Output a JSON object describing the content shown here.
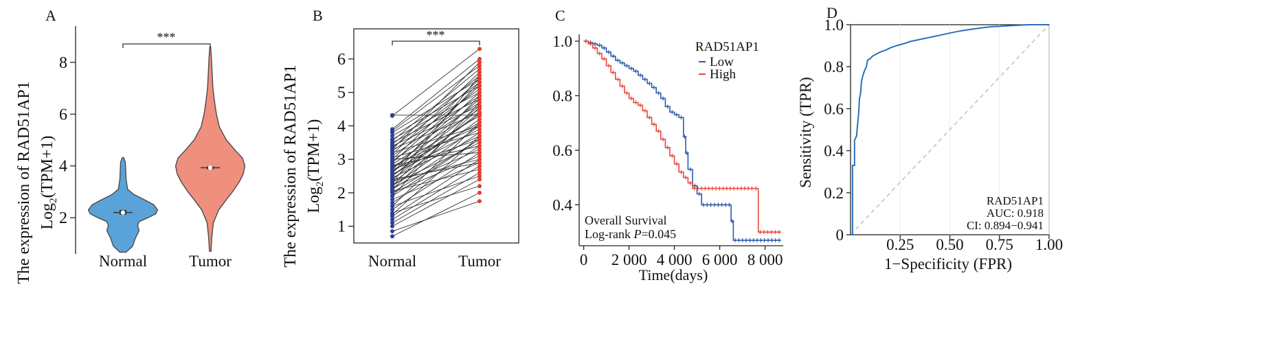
{
  "panels": [
    {
      "letter": "A",
      "chart_data": {
        "type": "violin",
        "categories": [
          "Normal",
          "Tumor"
        ],
        "ylabel_line1": "The expression of RAD51AP1",
        "ylabel_line2": "Log2(TPM+1)",
        "ylim": [
          0.6,
          9.4
        ],
        "yticks": [
          2,
          4,
          6,
          8
        ],
        "yticklabels": [
          "2",
          "4",
          "6",
          "8"
        ],
        "significance": "***",
        "series": [
          {
            "category": "Normal",
            "color": "#5aa3d8",
            "median": 2.2,
            "q1": 2.12,
            "q3": 2.3,
            "min": 0.67,
            "max": 4.32,
            "density": [
              [
                0.67,
                0.08
              ],
              [
                0.9,
                0.25
              ],
              [
                1.2,
                0.32
              ],
              [
                1.5,
                0.42
              ],
              [
                1.7,
                0.38
              ],
              [
                1.85,
                0.42
              ],
              [
                2.0,
                0.65
              ],
              [
                2.15,
                0.85
              ],
              [
                2.3,
                0.9
              ],
              [
                2.5,
                0.8
              ],
              [
                2.7,
                0.55
              ],
              [
                2.9,
                0.28
              ],
              [
                3.1,
                0.12
              ],
              [
                3.5,
                0.08
              ],
              [
                3.9,
                0.07
              ],
              [
                4.15,
                0.06
              ],
              [
                4.32,
                0.02
              ]
            ]
          },
          {
            "category": "Tumor",
            "color": "#ef8f7e",
            "median": 3.93,
            "q1": 3.87,
            "q3": 3.98,
            "min": 0.7,
            "max": 8.6,
            "density": [
              [
                0.7,
                0.02
              ],
              [
                1.2,
                0.04
              ],
              [
                1.8,
                0.08
              ],
              [
                2.3,
                0.22
              ],
              [
                2.7,
                0.42
              ],
              [
                3.0,
                0.58
              ],
              [
                3.4,
                0.76
              ],
              [
                3.7,
                0.86
              ],
              [
                4.0,
                0.9
              ],
              [
                4.3,
                0.84
              ],
              [
                4.6,
                0.65
              ],
              [
                5.0,
                0.42
              ],
              [
                5.5,
                0.24
              ],
              [
                6.0,
                0.16
              ],
              [
                6.5,
                0.11
              ],
              [
                7.0,
                0.07
              ],
              [
                7.6,
                0.05
              ],
              [
                8.2,
                0.03
              ],
              [
                8.6,
                0.01
              ]
            ]
          }
        ]
      }
    },
    {
      "letter": "B",
      "chart_data": {
        "type": "paired",
        "categories": [
          "Normal",
          "Tumor"
        ],
        "ylabel_line1": "The expression of RAD51AP1",
        "ylabel_line2": "Log2(TPM+1)",
        "ylim": [
          0.5,
          6.9
        ],
        "yticks": [
          1,
          2,
          3,
          4,
          5,
          6
        ],
        "yticklabels": [
          "1",
          "2",
          "3",
          "4",
          "5",
          "6"
        ],
        "significance": "***",
        "normal_color": "#2b3f9a",
        "tumor_color": "#e83a32",
        "pairs": [
          [
            0.7,
            2.0
          ],
          [
            0.85,
            1.75
          ],
          [
            1.0,
            2.4
          ],
          [
            1.1,
            2.6
          ],
          [
            1.2,
            2.8
          ],
          [
            1.3,
            3.0
          ],
          [
            1.4,
            2.2
          ],
          [
            1.5,
            3.2
          ],
          [
            1.6,
            2.5
          ],
          [
            1.7,
            3.4
          ],
          [
            1.8,
            2.9
          ],
          [
            1.9,
            3.6
          ],
          [
            2.0,
            3.1
          ],
          [
            2.05,
            2.7
          ],
          [
            2.1,
            3.8
          ],
          [
            2.15,
            3.3
          ],
          [
            2.2,
            4.0
          ],
          [
            2.25,
            3.5
          ],
          [
            2.3,
            4.2
          ],
          [
            2.35,
            3.0
          ],
          [
            2.4,
            4.4
          ],
          [
            2.45,
            3.7
          ],
          [
            2.5,
            4.6
          ],
          [
            2.55,
            3.9
          ],
          [
            2.6,
            4.8
          ],
          [
            2.65,
            4.1
          ],
          [
            2.7,
            5.0
          ],
          [
            2.75,
            4.3
          ],
          [
            2.8,
            3.4
          ],
          [
            2.85,
            4.5
          ],
          [
            2.9,
            5.2
          ],
          [
            2.95,
            4.7
          ],
          [
            3.0,
            5.4
          ],
          [
            3.05,
            3.8
          ],
          [
            3.1,
            4.9
          ],
          [
            3.15,
            5.6
          ],
          [
            3.2,
            4.0
          ],
          [
            3.25,
            5.1
          ],
          [
            3.3,
            4.4
          ],
          [
            3.35,
            5.3
          ],
          [
            3.4,
            4.6
          ],
          [
            3.45,
            5.5
          ],
          [
            3.5,
            4.8
          ],
          [
            3.55,
            5.7
          ],
          [
            3.6,
            5.0
          ],
          [
            3.7,
            5.2
          ],
          [
            3.8,
            5.4
          ],
          [
            3.85,
            5.8
          ],
          [
            3.9,
            6.0
          ],
          [
            4.3,
            6.3
          ],
          [
            4.32,
            4.32
          ],
          [
            2.0,
            3.6
          ],
          [
            2.2,
            4.9
          ],
          [
            2.4,
            2.9
          ],
          [
            2.6,
            5.3
          ],
          [
            2.8,
            4.0
          ],
          [
            3.0,
            3.2
          ],
          [
            2.3,
            5.5
          ],
          [
            1.9,
            4.7
          ],
          [
            1.6,
            4.1
          ],
          [
            2.5,
            4.35
          ],
          [
            2.7,
            3.6
          ],
          [
            2.1,
            4.55
          ],
          [
            3.3,
            5.9
          ],
          [
            1.35,
            3.7
          ]
        ]
      }
    },
    {
      "letter": "C",
      "chart_data": {
        "type": "kaplan-meier",
        "xlabel": "Time(days)",
        "xlim": [
          -200,
          8800
        ],
        "ylim": [
          0.25,
          1.02
        ],
        "xticks": [
          0,
          2000,
          4000,
          6000,
          8000
        ],
        "xticklabels": [
          "0",
          "2 000",
          "4 000",
          "6 000",
          "8 000"
        ],
        "yticks": [
          0.4,
          0.6,
          0.8,
          1.0
        ],
        "yticklabels": [
          "0.4",
          "0.6",
          "0.8",
          "1.0"
        ],
        "legend_title": "RAD51AP1",
        "series": [
          {
            "name": "Low",
            "color": "#2a5cab",
            "steps": [
              [
                0,
                1.0
              ],
              [
                200,
                0.995
              ],
              [
                400,
                0.99
              ],
              [
                600,
                0.985
              ],
              [
                800,
                0.975
              ],
              [
                1000,
                0.96
              ],
              [
                1200,
                0.945
              ],
              [
                1400,
                0.93
              ],
              [
                1600,
                0.92
              ],
              [
                1800,
                0.91
              ],
              [
                2000,
                0.9
              ],
              [
                2200,
                0.89
              ],
              [
                2400,
                0.875
              ],
              [
                2600,
                0.86
              ],
              [
                2800,
                0.845
              ],
              [
                3000,
                0.83
              ],
              [
                3200,
                0.81
              ],
              [
                3400,
                0.79
              ],
              [
                3600,
                0.76
              ],
              [
                3800,
                0.74
              ],
              [
                4000,
                0.73
              ],
              [
                4200,
                0.72
              ],
              [
                4400,
                0.65
              ],
              [
                4500,
                0.59
              ],
              [
                4600,
                0.53
              ],
              [
                4800,
                0.47
              ],
              [
                5000,
                0.44
              ],
              [
                5200,
                0.4
              ],
              [
                6500,
                0.34
              ],
              [
                6600,
                0.27
              ],
              [
                8700,
                0.27
              ]
            ]
          },
          {
            "name": "High",
            "color": "#e8483a",
            "steps": [
              [
                0,
                1.0
              ],
              [
                200,
                0.99
              ],
              [
                400,
                0.975
              ],
              [
                600,
                0.955
              ],
              [
                800,
                0.935
              ],
              [
                1000,
                0.91
              ],
              [
                1200,
                0.885
              ],
              [
                1400,
                0.86
              ],
              [
                1600,
                0.835
              ],
              [
                1800,
                0.81
              ],
              [
                2000,
                0.79
              ],
              [
                2200,
                0.775
              ],
              [
                2400,
                0.765
              ],
              [
                2600,
                0.745
              ],
              [
                2800,
                0.72
              ],
              [
                3000,
                0.695
              ],
              [
                3200,
                0.67
              ],
              [
                3400,
                0.64
              ],
              [
                3600,
                0.61
              ],
              [
                3800,
                0.58
              ],
              [
                4000,
                0.55
              ],
              [
                4200,
                0.52
              ],
              [
                4400,
                0.5
              ],
              [
                4600,
                0.48
              ],
              [
                4800,
                0.46
              ],
              [
                7500,
                0.46
              ],
              [
                7700,
                0.3
              ],
              [
                8700,
                0.3
              ]
            ]
          }
        ],
        "annotation_line1": "Overall Survival",
        "annotation_line2_prefix": "Log-rank ",
        "annotation_line2_p": "P",
        "annotation_line2_value": "=0.045"
      }
    },
    {
      "letter": "D",
      "chart_data": {
        "type": "roc",
        "xlabel": "1−Specificity (FPR)",
        "ylabel": "Sensitivity (TPR)",
        "xlim": [
          0,
          1
        ],
        "ylim": [
          0,
          1
        ],
        "xticks": [
          0.25,
          0.5,
          0.75,
          1.0
        ],
        "xticklabels": [
          "0.25",
          "0.50",
          "0.75",
          "1.00"
        ],
        "yticks": [
          0,
          0.2,
          0.4,
          0.6,
          0.8,
          1.0
        ],
        "yticklabels": [
          "0",
          "0.2",
          "0.4",
          "0.6",
          "0.8",
          "1.0"
        ],
        "curve_color": "#2a6fba",
        "points": [
          [
            0,
            0
          ],
          [
            0.01,
            0.0
          ],
          [
            0.01,
            0.33
          ],
          [
            0.02,
            0.33
          ],
          [
            0.02,
            0.45
          ],
          [
            0.03,
            0.47
          ],
          [
            0.035,
            0.52
          ],
          [
            0.04,
            0.57
          ],
          [
            0.045,
            0.65
          ],
          [
            0.05,
            0.67
          ],
          [
            0.055,
            0.73
          ],
          [
            0.06,
            0.75
          ],
          [
            0.07,
            0.78
          ],
          [
            0.08,
            0.8
          ],
          [
            0.085,
            0.83
          ],
          [
            0.1,
            0.84
          ],
          [
            0.11,
            0.85
          ],
          [
            0.13,
            0.86
          ],
          [
            0.15,
            0.87
          ],
          [
            0.18,
            0.88
          ],
          [
            0.2,
            0.89
          ],
          [
            0.23,
            0.9
          ],
          [
            0.27,
            0.91
          ],
          [
            0.3,
            0.92
          ],
          [
            0.35,
            0.93
          ],
          [
            0.4,
            0.94
          ],
          [
            0.45,
            0.95
          ],
          [
            0.5,
            0.96
          ],
          [
            0.55,
            0.97
          ],
          [
            0.62,
            0.98
          ],
          [
            0.7,
            0.99
          ],
          [
            0.8,
            0.995
          ],
          [
            0.9,
            1.0
          ],
          [
            1.0,
            1.0
          ]
        ],
        "legend_line1": "RAD51AP1",
        "legend_line2": "AUC: 0.918",
        "legend_line3": "CI: 0.894−0.941"
      }
    }
  ]
}
